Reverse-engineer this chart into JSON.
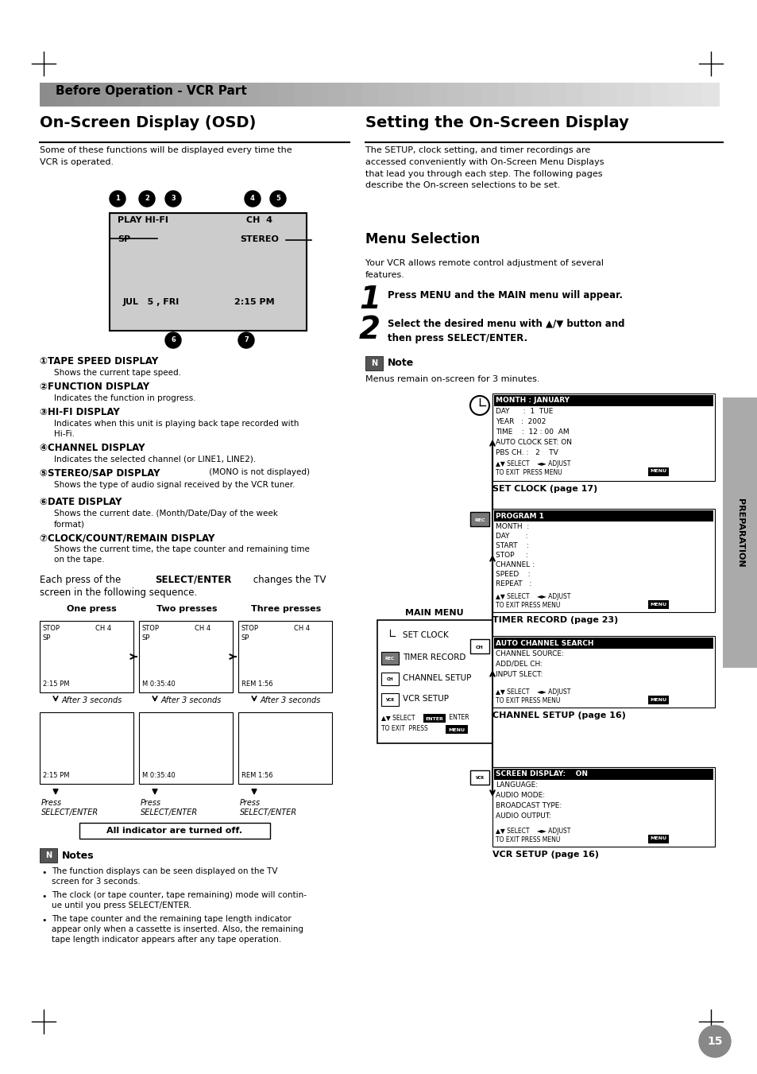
{
  "page_bg": "#ffffff",
  "page_width": 9.54,
  "page_height": 13.51,
  "header_text": "Before Operation - VCR Part",
  "side_tab_text": "PREPARATION",
  "left_title": "On-Screen Display (OSD)",
  "right_title": "Setting the On-Screen Display",
  "left_body1": "Some of these functions will be displayed every time the\nVCR is operated.",
  "right_body1": "The SETUP, clock setting, and timer recordings are\naccessed conveniently with On-Screen Menu Displays\nthat lead you through each step. The following pages\ndescribe the On-screen selections to be set.",
  "menu_selection_title": "Menu Selection",
  "menu_body": "Your VCR allows remote control adjustment of several\nfeatures.",
  "step1": "Press MENU and the MAIN menu will appear.",
  "step2": "Select the desired menu with ▲/▼ button and\nthen press SELECT/ENTER.",
  "note_text": "Note",
  "note_body": "Menus remain on-screen for 3 minutes.",
  "press_labels": [
    "One press",
    "Two presses",
    "Three presses"
  ],
  "set_clock_items": [
    "MONTH : JANUARY",
    "DAY      :  1  TUE",
    "YEAR   :  2002",
    "TIME    :  12 : 00  AM",
    "AUTO CLOCK SET: ON",
    "PBS CH. :   2    TV"
  ],
  "set_clock_footer": "▲▼ SELECT    ◄► ADJUST\nTO EXIT  PRESS MENU",
  "timer_items": [
    "PROGRAM 1",
    "MONTH  :",
    "DAY       :",
    "START    :",
    "STOP     :",
    "CHANNEL :",
    "SPEED    :",
    "REPEAT   :"
  ],
  "timer_footer": "▲▼ SELECT    ◄► ADJUST\nTO EXIT PRESS MENU",
  "channel_items": [
    "AUTO CHANNEL SEARCH",
    "CHANNEL SOURCE:",
    "ADD/DEL CH:",
    "INPUT SLECT:"
  ],
  "channel_footer": "▲▼ SELECT    ◄► ADJUST\nTO EXIT PRESS MENU",
  "vcr_items": [
    "SCREEN DISPLAY:    ON",
    "LANGUAGE:",
    "AUDIO MODE:",
    "BROADCAST TYPE:",
    "AUDIO OUTPUT:"
  ],
  "vcr_footer": "▲▼ SELECT    ◄► ADJUST\nTO EXIT PRESS MENU",
  "main_menu_items": [
    "SET CLOCK",
    "TIMER RECORD",
    "CHANNEL SETUP",
    "VCR SETUP"
  ],
  "notes_bottom": [
    "The function displays can be seen displayed on the TV\nscreen for 3 seconds.",
    "The clock (or tape counter, tape remaining) mode will contin-\nue until you press SELECT/ENTER.",
    "The tape counter and the remaining tape length indicator\nappear only when a cassette is inserted. Also, the remaining\ntape length indicator appears after any tape operation."
  ],
  "page_number": "15",
  "set_clock_label": "SET CLOCK (page 17)",
  "timer_label": "TIMER RECORD (page 23)",
  "channel_label": "CHANNEL SETUP (page 16)",
  "vcr_label": "VCR SETUP (page 16)"
}
